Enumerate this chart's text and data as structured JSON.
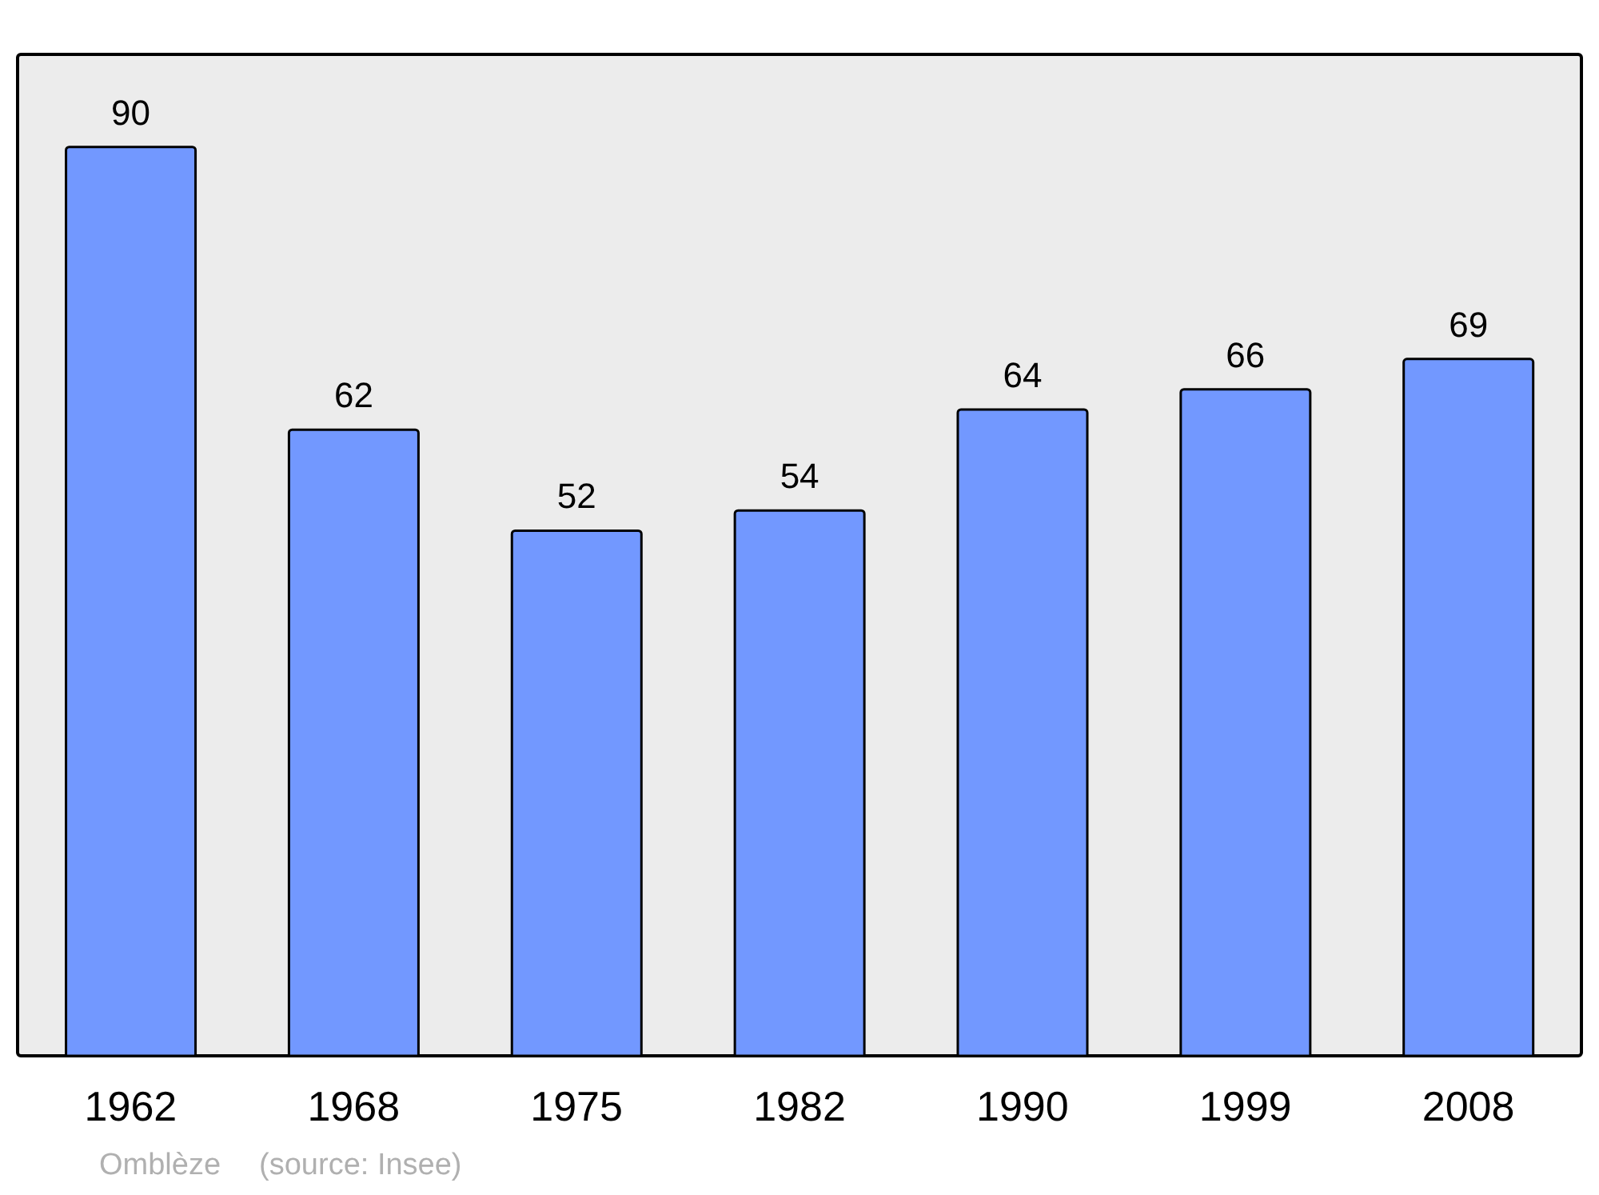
{
  "chart_data": {
    "type": "bar",
    "categories": [
      "1962",
      "1968",
      "1975",
      "1982",
      "1990",
      "1999",
      "2008"
    ],
    "values": [
      90,
      62,
      52,
      54,
      64,
      66,
      69
    ],
    "color": "#7298ff",
    "data_labels": true,
    "ylim": [
      0,
      99
    ],
    "annotations": [
      "Omblèze",
      "(source: Insee)"
    ]
  }
}
